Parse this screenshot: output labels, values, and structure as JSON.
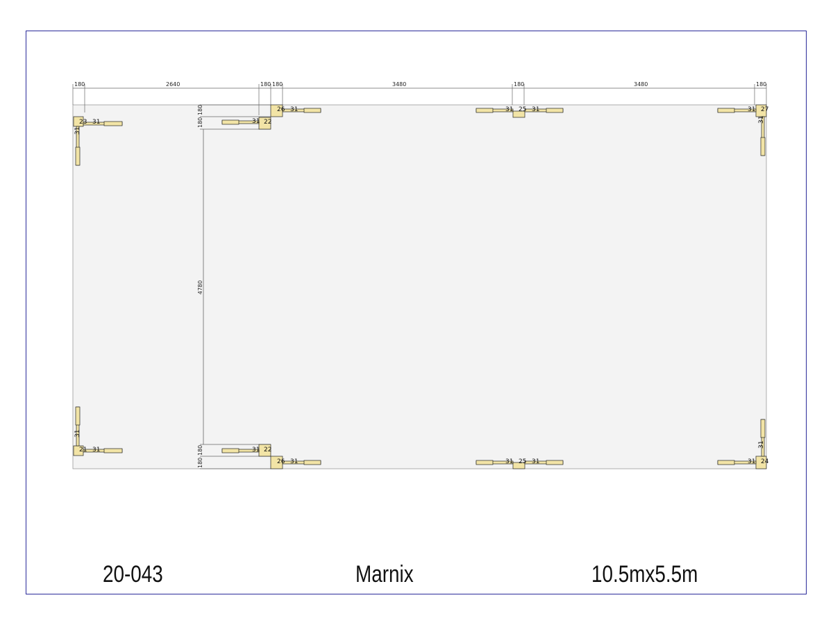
{
  "title_block": {
    "project_number": "20-043",
    "name": "Marnix",
    "size": "10.5mx5.5m"
  },
  "dimensions": {
    "top": [
      "180",
      "2640",
      "180",
      "180",
      "3480",
      "180",
      "3480",
      "180"
    ],
    "left_vertical": [
      "180",
      "180",
      "4780",
      "180",
      "180"
    ]
  },
  "post_labels": {
    "top_left": [
      "23",
      "31",
      "31"
    ],
    "top_inner": [
      "31",
      "22"
    ],
    "top_door": [
      "26",
      "31"
    ],
    "top_mid": [
      "31",
      "25",
      "31"
    ],
    "top_right": [
      "31",
      "27",
      "31"
    ],
    "bottom_left": [
      "31",
      "21",
      "31"
    ],
    "bottom_inner": [
      "31",
      "22"
    ],
    "bottom_door": [
      "26",
      "31"
    ],
    "bottom_mid": [
      "31",
      "25",
      "31"
    ],
    "bottom_right": [
      "31",
      "31",
      "24"
    ]
  },
  "colors": {
    "frame": "#2a2a9a",
    "floor": "#f3f3f3",
    "timber": "#f2e4a6",
    "dimension_line": "#666666"
  }
}
